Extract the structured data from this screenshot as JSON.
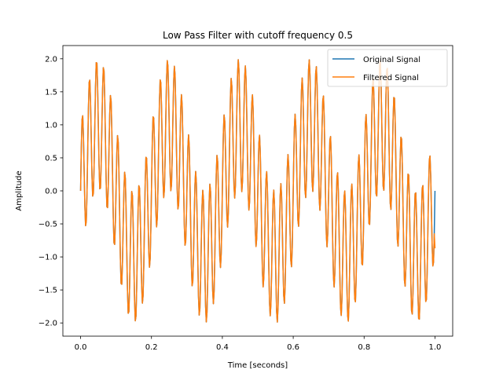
{
  "chart_data": {
    "type": "line",
    "title": "Low Pass Filter with cutoff frequency 0.5",
    "xlabel": "Time [seconds]",
    "ylabel": "Amplitude",
    "xlim": [
      -0.05,
      1.05
    ],
    "ylim": [
      -2.2,
      2.2
    ],
    "grid": false,
    "legend_position": "top-right",
    "x_ticks": [
      0.0,
      0.2,
      0.4,
      0.6,
      0.8,
      1.0
    ],
    "x_tick_labels": [
      "0.0",
      "0.2",
      "0.4",
      "0.6",
      "0.8",
      "1.0"
    ],
    "y_ticks": [
      -2.0,
      -1.5,
      -1.0,
      -0.5,
      0.0,
      0.5,
      1.0,
      1.5,
      2.0
    ],
    "y_tick_labels": [
      "−2.0",
      "−1.5",
      "−1.0",
      "−0.5",
      "0.0",
      "0.5",
      "1.0",
      "1.5",
      "2.0"
    ],
    "x_range": [
      0.0,
      1.0
    ],
    "samples": 500,
    "series": [
      {
        "name": "Original Signal",
        "color": "#1f77b4",
        "formula": "sin(2π·5t) + sin(2π·50t)",
        "components": [
          {
            "amplitude": 1.0,
            "frequency_hz": 5
          },
          {
            "amplitude": 1.0,
            "frequency_hz": 50
          }
        ]
      },
      {
        "name": "Filtered Signal",
        "color": "#ff7f0e",
        "formula": "sin(2π·5t) + sin(2π·50t)",
        "components": [
          {
            "amplitude": 1.0,
            "frequency_hz": 5
          },
          {
            "amplitude": 1.0,
            "frequency_hz": 50
          }
        ],
        "end_value": -0.87
      }
    ]
  }
}
